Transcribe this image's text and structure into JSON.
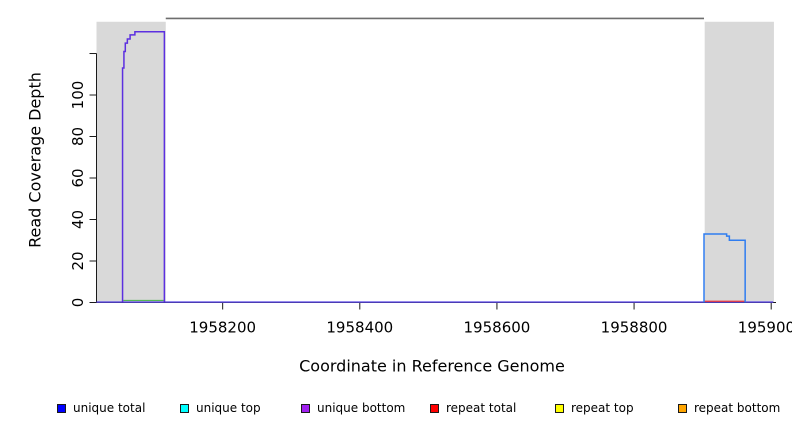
{
  "chart_data": {
    "type": "line",
    "title": "",
    "xlabel": "Coordinate in Reference Genome",
    "ylabel": "Read Coverage Depth",
    "xlim": [
      1958016,
      1959007
    ],
    "ylim": [
      0,
      137.6
    ],
    "grid": false,
    "x_ticks": [
      1958200,
      1958400,
      1958600,
      1958800,
      1959000
    ],
    "x_tick_labels": [
      "1958200",
      "1958400",
      "1958600",
      "1958800",
      "1959000"
    ],
    "y_ticks": [
      0,
      20,
      40,
      60,
      80,
      100,
      120
    ],
    "y_tick_labels": [
      "0",
      "20",
      "40",
      "60",
      "80",
      "100",
      ""
    ],
    "shaded_regions": [
      {
        "name": "left-gray-region",
        "x1": 1958016,
        "x2": 1958117,
        "y1": 0,
        "y2": 135.3,
        "color": "#d9d9d9"
      },
      {
        "name": "right-gray-region",
        "x1": 1958903,
        "x2": 1959004,
        "y1": 0,
        "y2": 135.3,
        "color": "#d9d9d9"
      }
    ],
    "reference_segment": {
      "x1": 1958117,
      "x2": 1958902,
      "y": 136.9,
      "color": "#6e6e6e",
      "width": 1.6
    },
    "series": [
      {
        "name": "zero-baseline",
        "color": "#5b47e6",
        "width": 1.4,
        "points": [
          [
            1958016,
            0.2
          ],
          [
            1959003,
            0.2
          ]
        ]
      },
      {
        "name": "green-low-coverage",
        "color": "#55b855",
        "width": 1.2,
        "points": [
          [
            1958055,
            1
          ],
          [
            1958114,
            1
          ]
        ]
      },
      {
        "name": "repeat-total-low-coverage",
        "color": "#ee3b3b",
        "width": 1.2,
        "points": [
          [
            1958902,
            0.6
          ],
          [
            1958962,
            0.6
          ]
        ]
      },
      {
        "name": "unique-coverage-left-peak",
        "color": "#5c2fe0",
        "width": 1.5,
        "points": [
          [
            1958054,
            0
          ],
          [
            1958054,
            113
          ],
          [
            1958056,
            113
          ],
          [
            1958056,
            121
          ],
          [
            1958058,
            121
          ],
          [
            1958058,
            125
          ],
          [
            1958061,
            125
          ],
          [
            1958061,
            127
          ],
          [
            1958065,
            127
          ],
          [
            1958065,
            129
          ],
          [
            1958072,
            129
          ],
          [
            1958072,
            130.5
          ],
          [
            1958115,
            130.5
          ],
          [
            1958115,
            0
          ]
        ]
      },
      {
        "name": "unique-coverage-right-step",
        "color": "#2f7df0",
        "width": 1.5,
        "points": [
          [
            1958902,
            0
          ],
          [
            1958902,
            33
          ],
          [
            1958935,
            33
          ],
          [
            1958935,
            32
          ],
          [
            1958939,
            32
          ],
          [
            1958939,
            30
          ],
          [
            1958962,
            30
          ],
          [
            1958962,
            0
          ]
        ]
      }
    ],
    "legend_position": "bottom",
    "legend": [
      {
        "label": "unique total",
        "color": "#0000ff"
      },
      {
        "label": "unique top",
        "color": "#00ffff"
      },
      {
        "label": "unique bottom",
        "color": "#a020f0"
      },
      {
        "label": "repeat total",
        "color": "#ff0000"
      },
      {
        "label": "repeat top",
        "color": "#ffff00"
      },
      {
        "label": "repeat bottom",
        "color": "#ffa500"
      }
    ]
  },
  "axis_color": "#1a1a1a",
  "tick_label_font_px": 15
}
